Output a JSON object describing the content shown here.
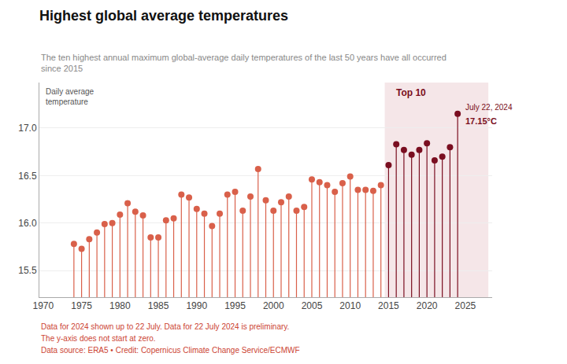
{
  "chart_data": {
    "type": "lollipop",
    "title": "Highest global average temperatures",
    "subtitle": "The ten highest annual maximum global-average daily temperatures of the last 50 years have all occurred\nsince 2015",
    "ylabel": "Daily average\ntemperature",
    "notes": [
      "Data for 2024 shown up to 22 July. Data for 22 July 2024 is preliminary.",
      "The y-axis does not start at zero.",
      "Data source: ERA5 • Credit: Copernicus Climate Change Service/ECMWF"
    ],
    "x": [
      1974,
      1975,
      1976,
      1977,
      1978,
      1979,
      1980,
      1981,
      1982,
      1983,
      1984,
      1985,
      1986,
      1987,
      1988,
      1989,
      1990,
      1991,
      1992,
      1993,
      1994,
      1995,
      1996,
      1997,
      1998,
      1999,
      2000,
      2001,
      2002,
      2003,
      2004,
      2005,
      2006,
      2007,
      2008,
      2009,
      2010,
      2011,
      2012,
      2013,
      2014,
      2015,
      2016,
      2017,
      2018,
      2019,
      2020,
      2021,
      2022,
      2023,
      2024
    ],
    "values": [
      15.78,
      15.73,
      15.83,
      15.9,
      15.99,
      16.0,
      16.09,
      16.21,
      16.12,
      16.08,
      15.85,
      15.85,
      16.03,
      16.05,
      16.3,
      16.27,
      16.15,
      16.1,
      15.97,
      16.1,
      16.3,
      16.33,
      16.13,
      16.28,
      16.57,
      16.24,
      16.13,
      16.22,
      16.28,
      16.13,
      16.17,
      16.46,
      16.43,
      16.4,
      16.33,
      16.42,
      16.49,
      16.35,
      16.35,
      16.34,
      16.4,
      16.61,
      16.83,
      16.77,
      16.72,
      16.77,
      16.84,
      16.66,
      16.7,
      16.8,
      17.15
    ],
    "colors": [
      "#d9604a",
      "#d9604a",
      "#d9604a",
      "#d9604a",
      "#d9604a",
      "#d9604a",
      "#d9604a",
      "#d9604a",
      "#d9604a",
      "#d9604a",
      "#d9604a",
      "#d9604a",
      "#d9604a",
      "#d9604a",
      "#d9604a",
      "#d9604a",
      "#d9604a",
      "#d9604a",
      "#d9604a",
      "#d9604a",
      "#d9604a",
      "#d9604a",
      "#d9604a",
      "#d9604a",
      "#d9604a",
      "#d9604a",
      "#d9604a",
      "#d9604a",
      "#d9604a",
      "#d9604a",
      "#d9604a",
      "#d9604a",
      "#d9604a",
      "#d9604a",
      "#d9604a",
      "#d9604a",
      "#d9604a",
      "#d9604a",
      "#d9604a",
      "#d9604a",
      "#d9604a",
      "#7a0e20",
      "#7a0e20",
      "#7a0e20",
      "#7a0e20",
      "#7a0e20",
      "#7a0e20",
      "#7a0e20",
      "#7a0e20",
      "#7a0e20",
      "#7a0e20"
    ],
    "highlight": {
      "from": 2014.5,
      "to": 2028,
      "color": "#f5e6e8",
      "label": "Top 10",
      "label_color": "#7a0e20"
    },
    "annotations": [
      {
        "x": 2024,
        "y": 17.15,
        "text": "July 22, 2024"
      },
      {
        "x": 2024,
        "y": 17.15,
        "text": "17.15°C"
      }
    ],
    "xlim": [
      1969.5,
      2028.5
    ],
    "xticks": [
      1970,
      1975,
      1980,
      1985,
      1990,
      1995,
      2000,
      2005,
      2010,
      2015,
      2020,
      2025
    ],
    "ylim": [
      15.22,
      17.48
    ],
    "yticks": [
      15.5,
      {
        "value": 16.0,
        "label": "16.0"
      },
      16.5,
      {
        "value": 17.0,
        "label": "17.0"
      }
    ],
    "grid": "y"
  }
}
